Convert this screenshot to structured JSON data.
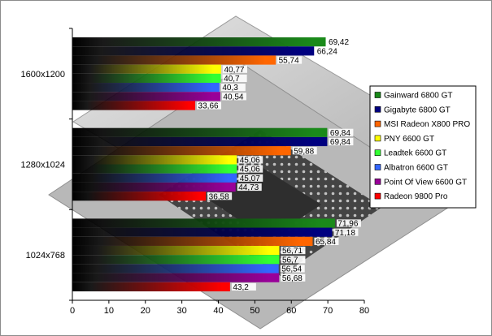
{
  "chart_data": {
    "type": "bar",
    "orientation": "horizontal",
    "categories": [
      "1600x1200",
      "1280x1024",
      "1024x768"
    ],
    "series": [
      {
        "name": "Gainward 6800 GT",
        "color": "#1a8a1a",
        "values": [
          69.42,
          69.84,
          71.96
        ],
        "labels": [
          "69,42",
          "69,84",
          "71,96"
        ]
      },
      {
        "name": "Gigabyte 6800 GT",
        "color": "#000080",
        "values": [
          66.24,
          69.84,
          71.18
        ],
        "labels": [
          "66,24",
          "69,84",
          "71,18"
        ]
      },
      {
        "name": "MSI Radeon X800 PRO",
        "color": "#ff6600",
        "values": [
          55.74,
          59.88,
          65.84
        ],
        "labels": [
          "55,74",
          "59,88",
          "65,84"
        ]
      },
      {
        "name": "PNY 6600 GT",
        "color": "#ffff00",
        "values": [
          40.77,
          45.06,
          56.71
        ],
        "labels": [
          "40,77",
          "45,06",
          "56,71"
        ]
      },
      {
        "name": "Leadtek 6600 GT",
        "color": "#33ff33",
        "values": [
          40.7,
          45.06,
          56.7
        ],
        "labels": [
          "40,7",
          "45,06",
          "56,7"
        ]
      },
      {
        "name": "Albatron 6600 GT",
        "color": "#3366ff",
        "values": [
          40.3,
          45.07,
          56.54
        ],
        "labels": [
          "40,3",
          "45,07",
          "56,54"
        ]
      },
      {
        "name": "Point Of View 6600 GT",
        "color": "#990099",
        "values": [
          40.54,
          44.73,
          56.68
        ],
        "labels": [
          "40,54",
          "44,73",
          "56,68"
        ]
      },
      {
        "name": "Radeon 9800 Pro",
        "color": "#ff0000",
        "values": [
          33.66,
          36.58,
          43.2
        ],
        "labels": [
          "33,66",
          "36,58",
          "43,2"
        ]
      }
    ],
    "xlim": [
      0,
      80
    ],
    "xticks": [
      "0",
      "10",
      "20",
      "30",
      "40",
      "50",
      "60",
      "70",
      "80"
    ],
    "grid": false,
    "legend": "right",
    "title": "",
    "xlabel": "",
    "ylabel": ""
  }
}
